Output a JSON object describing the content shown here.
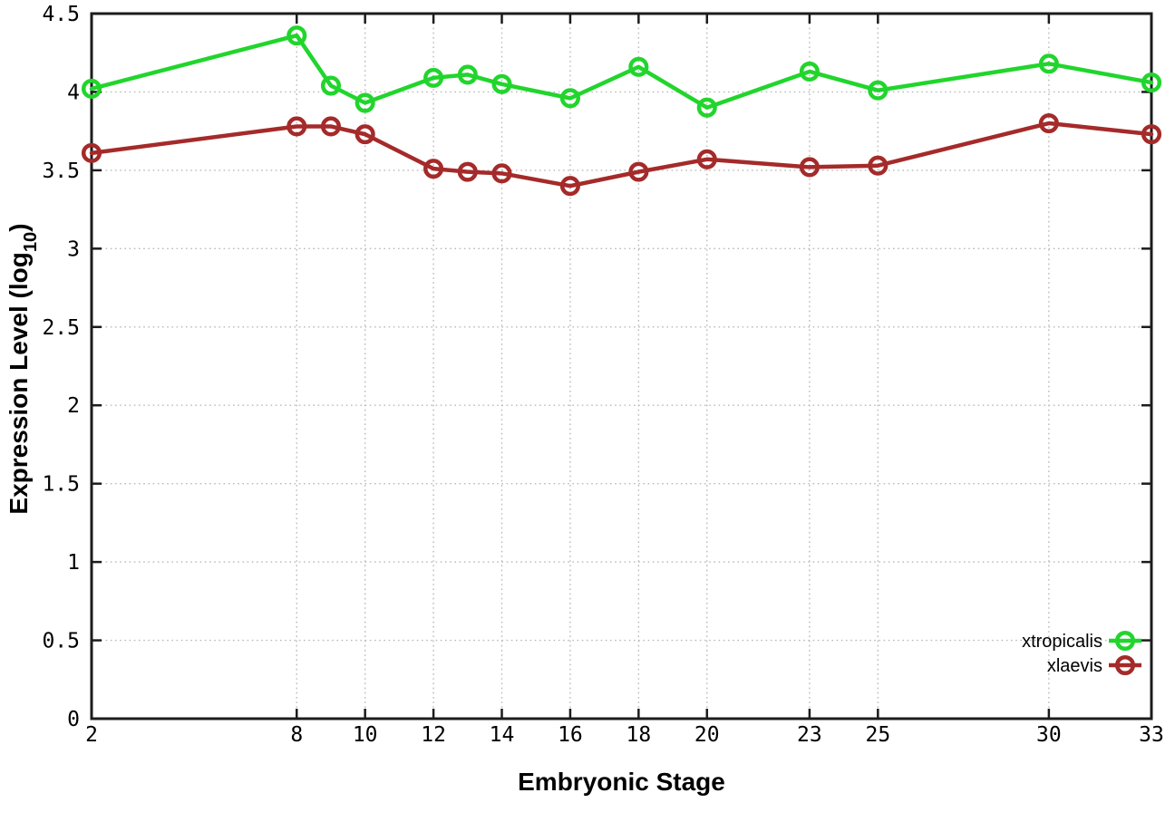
{
  "page": {
    "background_color": "#ffffff"
  },
  "chart_data": {
    "type": "line",
    "title": "",
    "xlabel": "Embryonic Stage",
    "ylabel": "Expression Level (log10)",
    "ylabel_parts": {
      "prefix": "Expression Level (log",
      "sub": "10",
      "suffix": ")"
    },
    "xlim": [
      2,
      33
    ],
    "ylim": [
      0,
      4.5
    ],
    "x_ticks": [
      2,
      8,
      10,
      12,
      14,
      16,
      18,
      20,
      23,
      25,
      30,
      33
    ],
    "y_ticks": [
      0,
      0.5,
      1,
      1.5,
      2,
      2.5,
      3,
      3.5,
      4,
      4.5
    ],
    "grid": true,
    "grid_style": "dotted",
    "legend_position": "bottom-right-inside",
    "x": [
      2,
      8,
      9,
      10,
      12,
      13,
      14,
      16,
      18,
      20,
      23,
      25,
      30,
      33
    ],
    "series": [
      {
        "name": "xtropicalis",
        "color": "#21d52c",
        "marker": "open-circle",
        "values": [
          4.02,
          4.36,
          4.04,
          3.93,
          4.09,
          4.11,
          4.05,
          3.96,
          4.16,
          3.9,
          4.13,
          4.01,
          4.18,
          4.06
        ]
      },
      {
        "name": "xlaevis",
        "color": "#a52a2a",
        "marker": "open-circle",
        "values": [
          3.61,
          3.78,
          3.78,
          3.73,
          3.51,
          3.49,
          3.48,
          3.4,
          3.49,
          3.57,
          3.52,
          3.53,
          3.8,
          3.73
        ]
      }
    ],
    "axis_color": "#1c1c1c",
    "grid_color": "#b9b9b9",
    "tick_label_color": "#000000"
  }
}
